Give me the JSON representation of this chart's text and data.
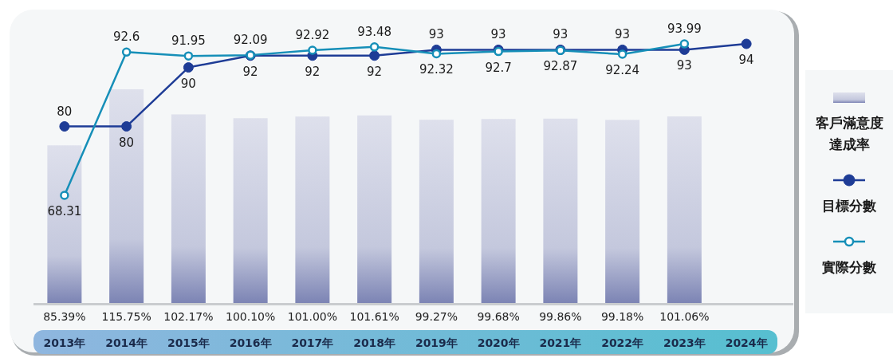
{
  "chart_data": {
    "type": "bar",
    "categories": [
      "2013年",
      "2014年",
      "2015年",
      "2016年",
      "2017年",
      "2018年",
      "2019年",
      "2020年",
      "2021年",
      "2022年",
      "2023年",
      "2024年"
    ],
    "series": [
      {
        "name": "客戶滿意度達成率",
        "color": "#7c84b4",
        "values": [
          85.39,
          115.75,
          102.17,
          100.1,
          101.0,
          101.61,
          99.27,
          99.68,
          99.86,
          99.18,
          101.06,
          null
        ],
        "value_labels": [
          "85.39%",
          "115.75%",
          "102.17%",
          "100.10%",
          "101.00%",
          "101.61%",
          "99.27%",
          "99.68%",
          "99.86%",
          "99.18%",
          "101.06%",
          null
        ]
      },
      {
        "name": "目標分數",
        "type": "line",
        "axis": "y2",
        "color": "#1e3c96",
        "values": [
          80,
          80,
          90,
          92,
          92,
          92,
          93,
          93,
          93,
          93,
          93,
          94
        ]
      },
      {
        "name": "實際分數",
        "type": "line",
        "axis": "y2",
        "color": "#168fb8",
        "values": [
          68.31,
          92.6,
          91.95,
          92.09,
          92.92,
          93.48,
          92.32,
          92.7,
          92.87,
          92.24,
          93.99,
          null
        ]
      }
    ],
    "data_labels": true,
    "legend": "right",
    "tick_labels": "x"
  }
}
